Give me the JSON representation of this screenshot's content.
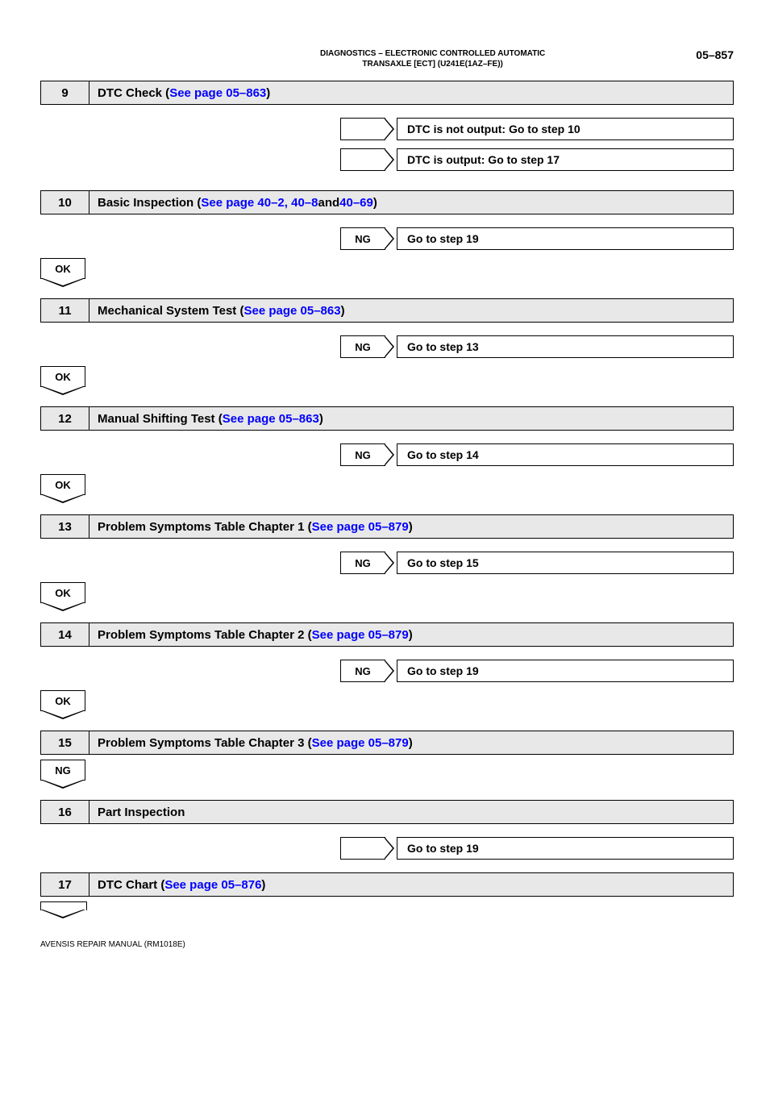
{
  "header": {
    "breadcrumb": "DIAGNOSTICS    –    ELECTRONIC CONTROLLED AUTOMATIC\nTRANSAXLE [ECT] (U241E(1AZ–FE))",
    "page_num": "05–857"
  },
  "steps": [
    {
      "num": "9",
      "title_prefix": "DTC Check (",
      "title_link": "See page 05–863",
      "title_suffix": ")",
      "branch_results": [
        {
          "badge": "",
          "text": "DTC is not output: Go to step 10"
        },
        {
          "badge": "",
          "text": "DTC is output: Go to step 17"
        }
      ],
      "down_badge": null
    },
    {
      "num": "10",
      "title_prefix": "Basic Inspection (",
      "title_link": "See page 40–2, 40–8",
      "title_mid": " and ",
      "title_link2": "40–69",
      "title_suffix": ")",
      "single_result": {
        "badge": "NG",
        "text": "Go to step 19"
      },
      "down_badge": "OK"
    },
    {
      "num": "11",
      "title_prefix": "Mechanical System Test (",
      "title_link": "See page 05–863",
      "title_suffix": ")",
      "single_result": {
        "badge": "NG",
        "text": "Go to step 13"
      },
      "down_badge": "OK"
    },
    {
      "num": "12",
      "title_prefix": "Manual Shifting Test (",
      "title_link": "See page 05–863",
      "title_suffix": ")",
      "single_result": {
        "badge": "NG",
        "text": "Go to step 14"
      },
      "down_badge": "OK"
    },
    {
      "num": "13",
      "title_prefix": "Problem Symptoms Table Chapter 1 (",
      "title_link": "See page 05–879",
      "title_suffix": ")",
      "single_result": {
        "badge": "NG",
        "text": "Go to step 15"
      },
      "down_badge": "OK"
    },
    {
      "num": "14",
      "title_prefix": "Problem Symptoms Table Chapter 2 (",
      "title_link": "See page 05–879",
      "title_suffix": ")",
      "single_result": {
        "badge": "NG",
        "text": "Go to step 19"
      },
      "down_badge": "OK"
    },
    {
      "num": "15",
      "title_prefix": "Problem Symptoms Table Chapter 3 (",
      "title_link": "See page 05–879",
      "title_suffix": ")",
      "single_result": null,
      "down_badge": "NG"
    },
    {
      "num": "16",
      "title_prefix": "Part Inspection",
      "title_link": "",
      "title_suffix": "",
      "single_result": {
        "badge": "",
        "text": "Go to step 19"
      },
      "down_badge": null
    },
    {
      "num": "17",
      "title_prefix": "DTC Chart (",
      "title_link": "See page 05–876",
      "title_suffix": ")",
      "single_result": null,
      "down_badge": "",
      "empty_down": true
    }
  ],
  "footer": "AVENSIS REPAIR MANUAL   (RM1018E)",
  "colors": {
    "link": "#0000ff",
    "shade": "#e8e8e8",
    "text": "#000000",
    "bg": "#ffffff"
  }
}
